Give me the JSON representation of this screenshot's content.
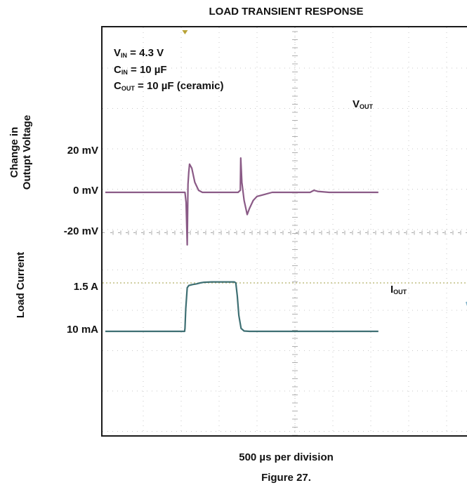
{
  "chart_data": {
    "type": "line",
    "title": "LOAD TRANSIENT RESPONSE",
    "xlabel": "500 µs per division",
    "figure_caption": "Figure 27.",
    "conditions": [
      {
        "sym": "V",
        "sub": "IN",
        "rest": " = 4.3 V"
      },
      {
        "sym": "C",
        "sub": "IN",
        "rest": " = 10 µF"
      },
      {
        "sym": "C",
        "sub": "OUT",
        "rest": " = 10 µF (ceramic)"
      }
    ],
    "upper_axis": {
      "label_line1": "Change in",
      "label_line2": "Outupt Voltage",
      "ticks": [
        "20 mV",
        "0 mV",
        "-20 mV"
      ],
      "tick_values_mV": [
        20,
        0,
        -20
      ]
    },
    "lower_axis": {
      "label": "Load Current",
      "ticks": [
        "1.5 A",
        "10 mA"
      ]
    },
    "series": [
      {
        "name": "VOUT",
        "label_main": "V",
        "label_sub": "OUT",
        "color": "#8a5a86",
        "unit": "mV",
        "x_us": [
          0,
          1050,
          1065,
          1080,
          1090,
          1100,
          1110,
          1140,
          1180,
          1230,
          1280,
          1330,
          1400,
          1500,
          1600,
          1700,
          1750,
          1780,
          1785,
          1800,
          1830,
          1870,
          1900,
          1950,
          2000,
          2100,
          2200,
          2300,
          2400,
          2500,
          2600,
          2700,
          2750,
          2800,
          2950,
          3000,
          3200,
          3600
        ],
        "y_mV": [
          0,
          0,
          -5,
          -26,
          4,
          10,
          14,
          12,
          5,
          1,
          0,
          0,
          0,
          0,
          0,
          0,
          0,
          1,
          17,
          5,
          -4,
          -11,
          -8,
          -4,
          -2,
          -1,
          0,
          0,
          0,
          0,
          0,
          0,
          1,
          0.5,
          0,
          0,
          0,
          0
        ]
      },
      {
        "name": "IOUT",
        "label_main": "I",
        "label_sub": "OUT",
        "color": "#3e6f73",
        "unit": "A",
        "x_us": [
          0,
          1045,
          1050,
          1060,
          1080,
          1100,
          1150,
          1200,
          1250,
          1300,
          1400,
          1500,
          1600,
          1700,
          1720,
          1740,
          1760,
          1790,
          1830,
          1900,
          2000,
          3000,
          3600
        ],
        "y_A": [
          0.01,
          0.01,
          0.1,
          0.7,
          1.35,
          1.42,
          1.45,
          1.47,
          1.5,
          1.52,
          1.53,
          1.53,
          1.53,
          1.53,
          1.5,
          1.1,
          0.5,
          0.1,
          0.02,
          0.01,
          0.01,
          0.01,
          0.01
        ]
      }
    ],
    "reference_line_A": 1.5,
    "grid": true
  }
}
